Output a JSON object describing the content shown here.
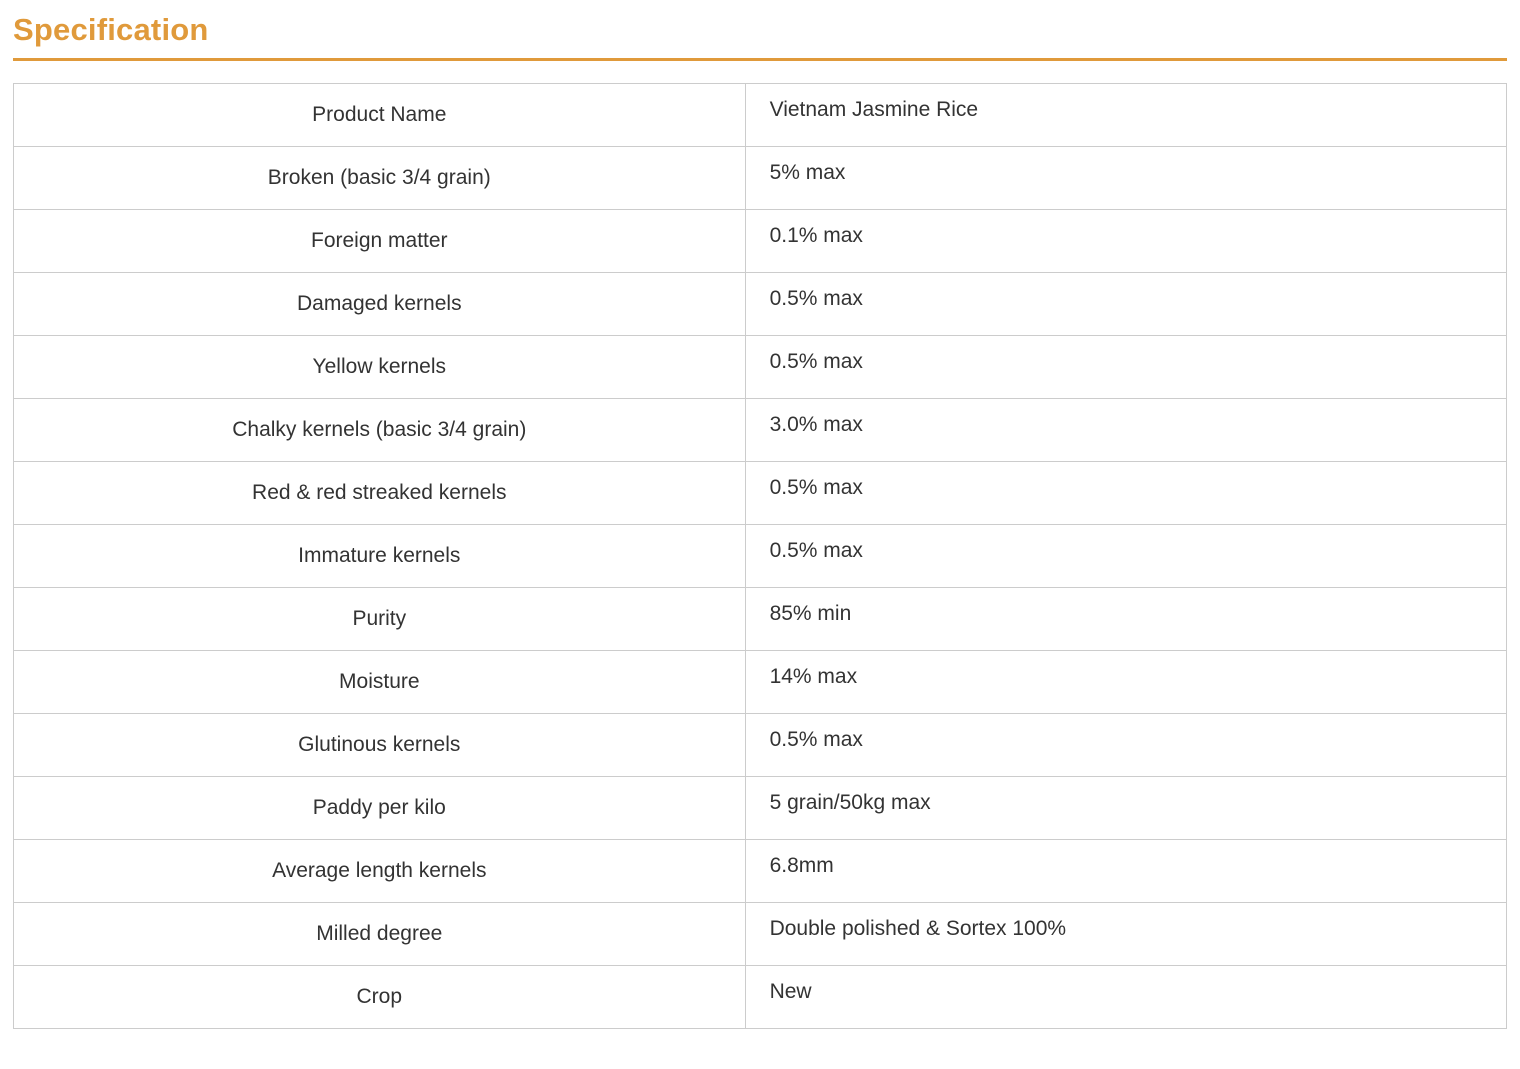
{
  "page": {
    "heading": "Specification"
  },
  "colors": {
    "accent": "#e09a3b",
    "border": "#cccccc",
    "text": "#333333"
  },
  "table": {
    "rows": [
      {
        "label": "Product Name",
        "value": "Vietnam Jasmine Rice"
      },
      {
        "label": "Broken (basic 3/4 grain)",
        "value": "5% max"
      },
      {
        "label": "Foreign matter",
        "value": "0.1% max"
      },
      {
        "label": "Damaged kernels",
        "value": "0.5% max"
      },
      {
        "label": "Yellow kernels",
        "value": "0.5% max"
      },
      {
        "label": "Chalky kernels (basic 3/4 grain)",
        "value": "3.0% max"
      },
      {
        "label": "Red & red streaked kernels",
        "value": "0.5% max"
      },
      {
        "label": "Immature kernels",
        "value": "0.5% max"
      },
      {
        "label": "Purity",
        "value": "85% min"
      },
      {
        "label": "Moisture",
        "value": "14% max"
      },
      {
        "label": "Glutinous kernels",
        "value": "0.5% max"
      },
      {
        "label": "Paddy per kilo",
        "value": "5 grain/50kg max"
      },
      {
        "label": "Average length kernels",
        "value": "6.8mm"
      },
      {
        "label": "Milled degree",
        "value": "Double polished & Sortex 100%"
      },
      {
        "label": "Crop",
        "value": "New"
      }
    ]
  }
}
